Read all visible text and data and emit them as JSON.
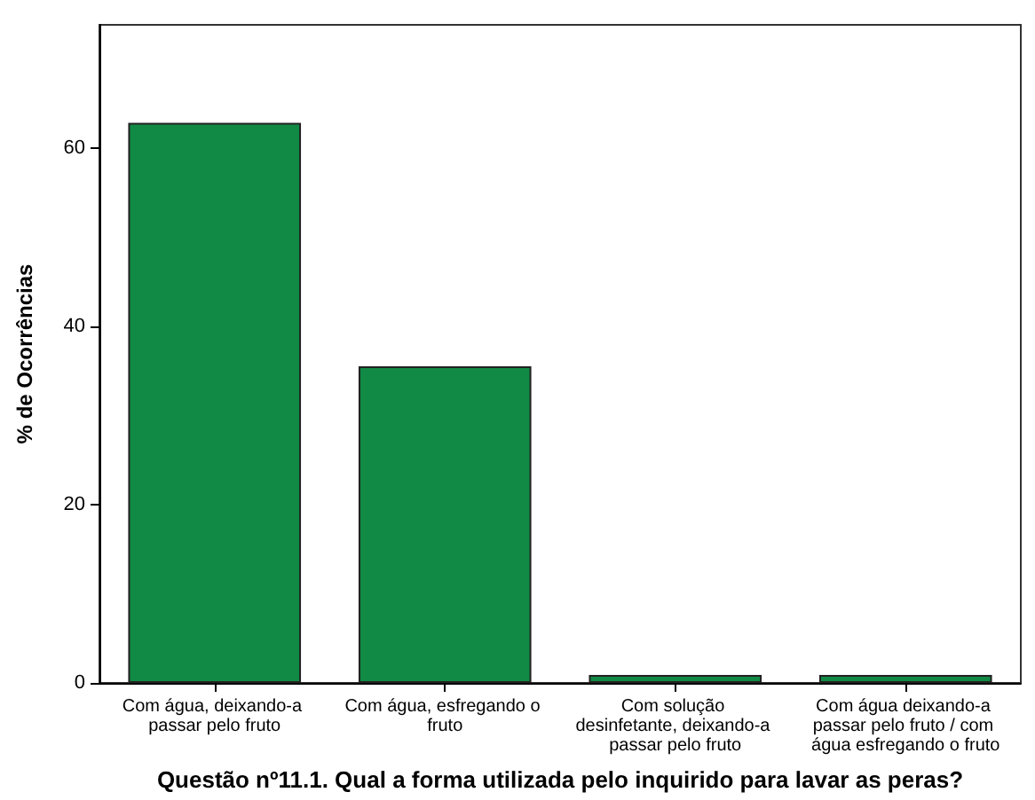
{
  "chart_data": {
    "type": "bar",
    "xlabel": "Questão nº11.1. Qual a forma utilizada pelo inquirido para lavar as peras?",
    "ylabel": "% de Ocorrências",
    "categories": [
      "Com água, deixando-a passar pelo fruto",
      "Com água, esfregando o fruto",
      "Com solução desinfetante, deixando-a passar pelo fruto",
      "Com água deixando-a passar pelo fruto / com água esfregando o fruto"
    ],
    "values": [
      62.8,
      35.5,
      0.9,
      0.9
    ],
    "color": "#118a45",
    "ylim": [
      0,
      73.8
    ],
    "yticks": [
      0,
      20,
      40,
      60
    ],
    "grid": false
  }
}
